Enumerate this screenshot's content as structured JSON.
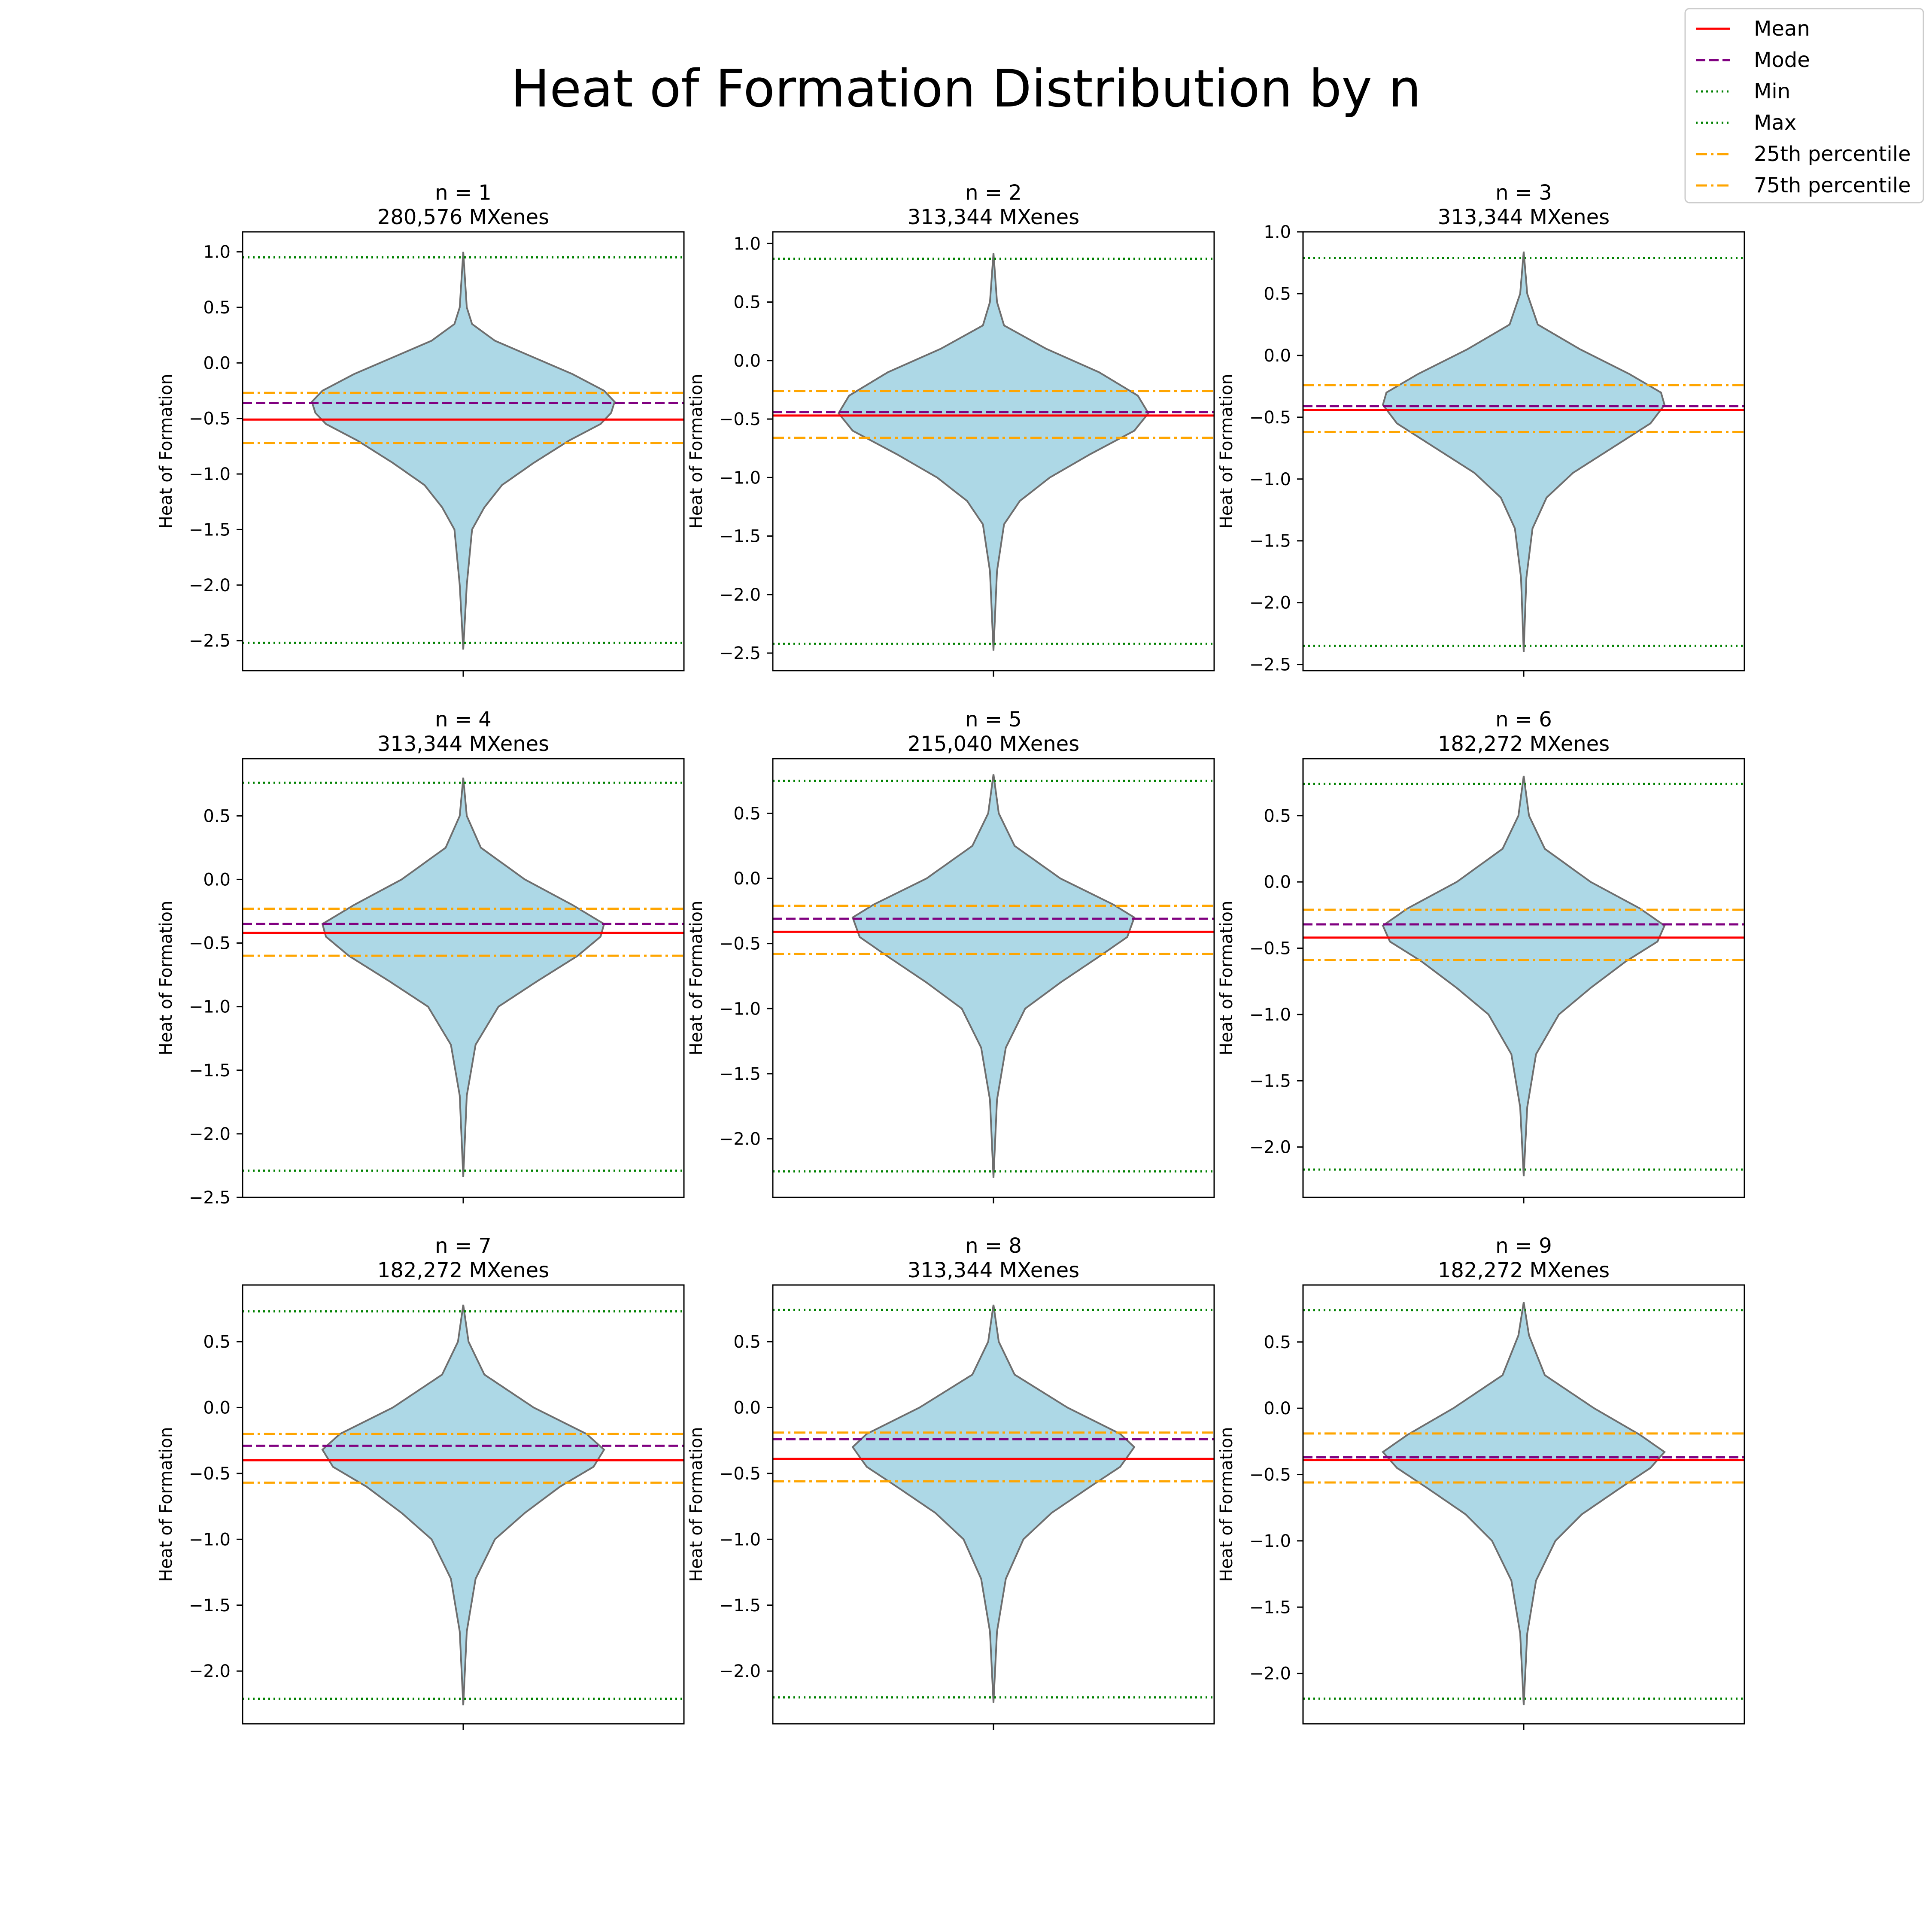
{
  "figure": {
    "title": "Heat of Formation Distribution by n"
  },
  "legend": {
    "placement": "top-right",
    "entries": [
      {
        "label": "Mean",
        "color": "#ff0000",
        "style": "solid"
      },
      {
        "label": "Mode",
        "color": "#800080",
        "style": "dashed"
      },
      {
        "label": "Min",
        "color": "#008000",
        "style": "dotted"
      },
      {
        "label": "Max",
        "color": "#008000",
        "style": "dotted"
      },
      {
        "label": "25th percentile",
        "color": "#ffa500",
        "style": "dashdot"
      },
      {
        "label": "75th percentile",
        "color": "#ffa500",
        "style": "dashdot"
      }
    ]
  },
  "colors": {
    "violin_fill": "#add8e6",
    "violin_edge": "#6e6e6e",
    "axes": "#000000"
  },
  "chart_data": [
    {
      "type": "violin",
      "title": "n = 1",
      "subtitle": "280,576 MXenes",
      "ylabel": "Heat of Formation",
      "ylim": [
        -2.77,
        1.18
      ],
      "yticks": [
        -2.5,
        -2.0,
        -1.5,
        -1.0,
        -0.5,
        0.0,
        0.5,
        1.0
      ],
      "grid": false,
      "stats": {
        "mean": -0.51,
        "mode": -0.36,
        "min": -2.52,
        "max": 0.95,
        "p25": -0.72,
        "p75": -0.27
      },
      "violin": {
        "ymin": -2.58,
        "ymax": 1.0,
        "center": -0.4,
        "profile": [
          [
            1.0,
            0.0
          ],
          [
            0.5,
            0.02
          ],
          [
            0.35,
            0.05
          ],
          [
            0.2,
            0.18
          ],
          [
            0.05,
            0.4
          ],
          [
            -0.1,
            0.62
          ],
          [
            -0.25,
            0.8
          ],
          [
            -0.35,
            0.86
          ],
          [
            -0.45,
            0.84
          ],
          [
            -0.55,
            0.78
          ],
          [
            -0.7,
            0.6
          ],
          [
            -0.9,
            0.4
          ],
          [
            -1.1,
            0.22
          ],
          [
            -1.3,
            0.12
          ],
          [
            -1.5,
            0.05
          ],
          [
            -2.0,
            0.02
          ],
          [
            -2.58,
            0.0
          ]
        ]
      }
    },
    {
      "type": "violin",
      "title": "n = 2",
      "subtitle": "313,344 MXenes",
      "ylabel": "Heat of Formation",
      "ylim": [
        -2.65,
        1.1
      ],
      "yticks": [
        -2.5,
        -2.0,
        -1.5,
        -1.0,
        -0.5,
        0.0,
        0.5,
        1.0
      ],
      "grid": false,
      "stats": {
        "mean": -0.47,
        "mode": -0.44,
        "min": -2.42,
        "max": 0.87,
        "p25": -0.66,
        "p75": -0.26
      },
      "violin": {
        "ymin": -2.48,
        "ymax": 0.92,
        "center": -0.45,
        "profile": [
          [
            0.92,
            0.0
          ],
          [
            0.5,
            0.02
          ],
          [
            0.3,
            0.06
          ],
          [
            0.1,
            0.3
          ],
          [
            -0.1,
            0.6
          ],
          [
            -0.3,
            0.82
          ],
          [
            -0.45,
            0.88
          ],
          [
            -0.6,
            0.8
          ],
          [
            -0.8,
            0.55
          ],
          [
            -1.0,
            0.32
          ],
          [
            -1.2,
            0.15
          ],
          [
            -1.4,
            0.06
          ],
          [
            -1.8,
            0.02
          ],
          [
            -2.48,
            0.0
          ]
        ]
      }
    },
    {
      "type": "violin",
      "title": "n = 3",
      "subtitle": "313,344 MXenes",
      "ylabel": "Heat of Formation",
      "ylim": [
        -2.55,
        1.0
      ],
      "yticks": [
        -2.5,
        -2.0,
        -1.5,
        -1.0,
        -0.5,
        0.0,
        0.5,
        1.0
      ],
      "grid": false,
      "stats": {
        "mean": -0.44,
        "mode": -0.41,
        "min": -2.35,
        "max": 0.79,
        "p25": -0.62,
        "p75": -0.24
      },
      "violin": {
        "ymin": -2.4,
        "ymax": 0.84,
        "center": -0.4,
        "profile": [
          [
            0.84,
            0.0
          ],
          [
            0.5,
            0.02
          ],
          [
            0.25,
            0.08
          ],
          [
            0.05,
            0.32
          ],
          [
            -0.15,
            0.6
          ],
          [
            -0.3,
            0.78
          ],
          [
            -0.4,
            0.8
          ],
          [
            -0.55,
            0.72
          ],
          [
            -0.75,
            0.5
          ],
          [
            -0.95,
            0.28
          ],
          [
            -1.15,
            0.13
          ],
          [
            -1.4,
            0.05
          ],
          [
            -1.8,
            0.015
          ],
          [
            -2.4,
            0.0
          ]
        ]
      }
    },
    {
      "type": "violin",
      "title": "n = 4",
      "subtitle": "313,344 MXenes",
      "ylabel": "Heat of Formation",
      "ylim": [
        -2.5,
        0.95
      ],
      "yticks": [
        -2.5,
        -2.0,
        -1.5,
        -1.0,
        -0.5,
        0.0,
        0.5
      ],
      "grid": false,
      "stats": {
        "mean": -0.42,
        "mode": -0.35,
        "min": -2.29,
        "max": 0.76,
        "p25": -0.6,
        "p75": -0.23
      },
      "violin": {
        "ymin": -2.34,
        "ymax": 0.8,
        "center": -0.35,
        "profile": [
          [
            0.8,
            0.0
          ],
          [
            0.5,
            0.02
          ],
          [
            0.25,
            0.1
          ],
          [
            0.0,
            0.35
          ],
          [
            -0.2,
            0.62
          ],
          [
            -0.35,
            0.8
          ],
          [
            -0.45,
            0.78
          ],
          [
            -0.6,
            0.65
          ],
          [
            -0.8,
            0.42
          ],
          [
            -1.0,
            0.2
          ],
          [
            -1.3,
            0.07
          ],
          [
            -1.7,
            0.02
          ],
          [
            -2.34,
            0.0
          ]
        ]
      }
    },
    {
      "type": "violin",
      "title": "n = 5",
      "subtitle": "215,040 MXenes",
      "ylabel": "Heat of Formation",
      "ylim": [
        -2.45,
        0.92
      ],
      "yticks": [
        -2.0,
        -1.5,
        -1.0,
        -0.5,
        0.0,
        0.5
      ],
      "grid": false,
      "stats": {
        "mean": -0.41,
        "mode": -0.31,
        "min": -2.25,
        "max": 0.75,
        "p25": -0.58,
        "p75": -0.21
      },
      "violin": {
        "ymin": -2.3,
        "ymax": 0.8,
        "center": -0.3,
        "profile": [
          [
            0.8,
            0.0
          ],
          [
            0.5,
            0.03
          ],
          [
            0.25,
            0.12
          ],
          [
            0.0,
            0.38
          ],
          [
            -0.2,
            0.68
          ],
          [
            -0.3,
            0.8
          ],
          [
            -0.45,
            0.76
          ],
          [
            -0.6,
            0.6
          ],
          [
            -0.8,
            0.38
          ],
          [
            -1.0,
            0.18
          ],
          [
            -1.3,
            0.07
          ],
          [
            -1.7,
            0.02
          ],
          [
            -2.3,
            0.0
          ]
        ]
      }
    },
    {
      "type": "violin",
      "title": "n = 6",
      "subtitle": "182,272 MXenes",
      "ylabel": "Heat of Formation",
      "ylim": [
        -2.38,
        0.93
      ],
      "yticks": [
        -2.0,
        -1.5,
        -1.0,
        -0.5,
        0.0,
        0.5
      ],
      "grid": false,
      "stats": {
        "mean": -0.42,
        "mode": -0.32,
        "min": -2.17,
        "max": 0.74,
        "p25": -0.59,
        "p75": -0.21
      },
      "violin": {
        "ymin": -2.22,
        "ymax": 0.8,
        "center": -0.33,
        "profile": [
          [
            0.8,
            0.0
          ],
          [
            0.5,
            0.03
          ],
          [
            0.25,
            0.12
          ],
          [
            0.0,
            0.38
          ],
          [
            -0.2,
            0.66
          ],
          [
            -0.33,
            0.8
          ],
          [
            -0.45,
            0.76
          ],
          [
            -0.6,
            0.58
          ],
          [
            -0.8,
            0.38
          ],
          [
            -1.0,
            0.2
          ],
          [
            -1.3,
            0.07
          ],
          [
            -1.7,
            0.02
          ],
          [
            -2.22,
            0.0
          ]
        ]
      }
    },
    {
      "type": "violin",
      "title": "n = 7",
      "subtitle": "182,272 MXenes",
      "ylabel": "Heat of Formation",
      "ylim": [
        -2.4,
        0.93
      ],
      "yticks": [
        -2.0,
        -1.5,
        -1.0,
        -0.5,
        0.0,
        0.5
      ],
      "grid": false,
      "stats": {
        "mean": -0.4,
        "mode": -0.29,
        "min": -2.21,
        "max": 0.73,
        "p25": -0.57,
        "p75": -0.2
      },
      "violin": {
        "ymin": -2.26,
        "ymax": 0.78,
        "center": -0.32,
        "profile": [
          [
            0.78,
            0.0
          ],
          [
            0.5,
            0.03
          ],
          [
            0.25,
            0.12
          ],
          [
            0.0,
            0.4
          ],
          [
            -0.2,
            0.7
          ],
          [
            -0.32,
            0.8
          ],
          [
            -0.45,
            0.74
          ],
          [
            -0.6,
            0.55
          ],
          [
            -0.8,
            0.35
          ],
          [
            -1.0,
            0.18
          ],
          [
            -1.3,
            0.07
          ],
          [
            -1.7,
            0.02
          ],
          [
            -2.26,
            0.0
          ]
        ]
      }
    },
    {
      "type": "violin",
      "title": "n = 8",
      "subtitle": "313,344 MXenes",
      "ylabel": "Heat of Formation",
      "ylim": [
        -2.4,
        0.93
      ],
      "yticks": [
        -2.0,
        -1.5,
        -1.0,
        -0.5,
        0.0,
        0.5
      ],
      "grid": false,
      "stats": {
        "mean": -0.39,
        "mode": -0.24,
        "min": -2.2,
        "max": 0.74,
        "p25": -0.56,
        "p75": -0.19
      },
      "violin": {
        "ymin": -2.24,
        "ymax": 0.78,
        "center": -0.3,
        "profile": [
          [
            0.78,
            0.0
          ],
          [
            0.5,
            0.03
          ],
          [
            0.25,
            0.12
          ],
          [
            0.0,
            0.42
          ],
          [
            -0.2,
            0.72
          ],
          [
            -0.3,
            0.8
          ],
          [
            -0.45,
            0.72
          ],
          [
            -0.6,
            0.55
          ],
          [
            -0.8,
            0.33
          ],
          [
            -1.0,
            0.17
          ],
          [
            -1.3,
            0.07
          ],
          [
            -1.7,
            0.02
          ],
          [
            -2.24,
            0.0
          ]
        ]
      }
    },
    {
      "type": "violin",
      "title": "n = 9",
      "subtitle": "182,272 MXenes",
      "ylabel": "Heat of Formation",
      "ylim": [
        -2.38,
        0.93
      ],
      "yticks": [
        -2.0,
        -1.5,
        -1.0,
        -0.5,
        0.0,
        0.5
      ],
      "grid": false,
      "stats": {
        "mean": -0.39,
        "mode": -0.37,
        "min": -2.19,
        "max": 0.74,
        "p25": -0.56,
        "p75": -0.19
      },
      "violin": {
        "ymin": -2.24,
        "ymax": 0.8,
        "center": -0.33,
        "profile": [
          [
            0.8,
            0.0
          ],
          [
            0.55,
            0.03
          ],
          [
            0.25,
            0.12
          ],
          [
            0.0,
            0.4
          ],
          [
            -0.2,
            0.66
          ],
          [
            -0.33,
            0.8
          ],
          [
            -0.45,
            0.72
          ],
          [
            -0.6,
            0.55
          ],
          [
            -0.8,
            0.33
          ],
          [
            -1.0,
            0.18
          ],
          [
            -1.3,
            0.07
          ],
          [
            -1.7,
            0.02
          ],
          [
            -2.24,
            0.0
          ]
        ]
      }
    }
  ]
}
